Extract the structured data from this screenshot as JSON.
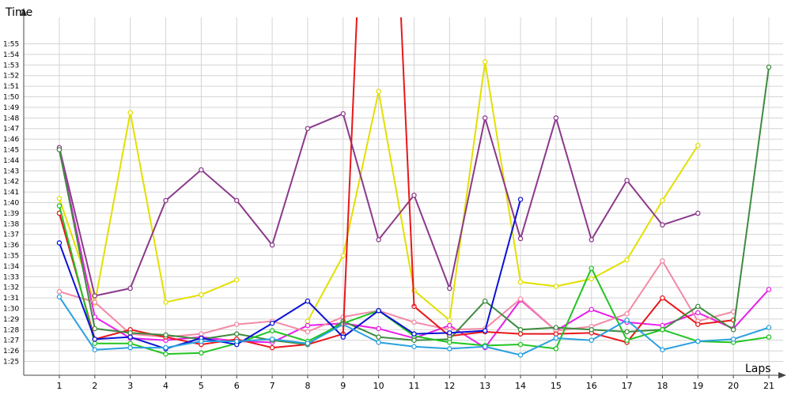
{
  "chart_data": {
    "type": "line",
    "xlabel": "Laps",
    "ylabel": "Time",
    "x": [
      1,
      2,
      3,
      4,
      5,
      6,
      7,
      8,
      9,
      10,
      11,
      12,
      13,
      14,
      15,
      16,
      17,
      18,
      19,
      20,
      21
    ],
    "x_ticks": [
      "1",
      "2",
      "3",
      "4",
      "5",
      "6",
      "7",
      "8",
      "9",
      "10",
      "11",
      "12",
      "13",
      "14",
      "15",
      "16",
      "17",
      "18",
      "19",
      "20",
      "21"
    ],
    "y_ticks_seconds": [
      85,
      86,
      87,
      88,
      89,
      90,
      91,
      92,
      93,
      94,
      95,
      96,
      97,
      98,
      99,
      100,
      101,
      102,
      103,
      104,
      105,
      106,
      107,
      108,
      109,
      110,
      111,
      112,
      113,
      114,
      115
    ],
    "y_tick_labels": [
      "1:25",
      "1:26",
      "1:27",
      "1:28",
      "1:29",
      "1:30",
      "1:31",
      "1:32",
      "1:33",
      "1:34",
      "1:35",
      "1:36",
      "1:37",
      "1:38",
      "1:39",
      "1:40",
      "1:41",
      "1:42",
      "1:43",
      "1:44",
      "1:45",
      "1:46",
      "1:47",
      "1:48",
      "1:49",
      "1:50",
      "1:51",
      "1:52",
      "1:53",
      "1:54",
      "1:55"
    ],
    "ylim_seconds": [
      83.8,
      117.6
    ],
    "grid": true,
    "legend": "none",
    "series": [
      {
        "color": "#e3df00",
        "values": [
          100.4,
          90.5,
          108.5,
          90.6,
          91.3,
          92.7,
          null,
          88.8,
          95.0,
          110.5,
          91.7,
          88.9,
          113.3,
          92.5,
          92.1,
          92.8,
          94.6,
          100.2,
          105.4,
          null,
          null
        ]
      },
      {
        "color": "#8b3a8b",
        "values": [
          105.2,
          91.2,
          91.9,
          100.2,
          103.1,
          100.2,
          96.0,
          107.0,
          108.4,
          96.5,
          100.7,
          91.9,
          108.0,
          96.6,
          108.0,
          96.5,
          102.1,
          97.9,
          99.0,
          null,
          null
        ]
      },
      {
        "color": "#e91fe9",
        "values": [
          105.0,
          89.2,
          87.2,
          87.0,
          87.3,
          86.9,
          86.8,
          88.4,
          88.6,
          88.1,
          87.2,
          88.4,
          86.3,
          90.8,
          87.9,
          89.9,
          88.7,
          88.4,
          89.6,
          88.1,
          91.8
        ]
      },
      {
        "color": "#f28aa5",
        "values": [
          91.6,
          90.6,
          87.6,
          87.3,
          87.6,
          88.5,
          88.8,
          87.8,
          89.2,
          89.8,
          88.7,
          88.0,
          88.1,
          90.9,
          87.9,
          88.3,
          89.5,
          94.5,
          88.8,
          89.7,
          null
        ]
      },
      {
        "color": "#e8171b",
        "values": [
          99.0,
          87.1,
          88.0,
          87.3,
          86.6,
          87.1,
          86.3,
          86.6,
          87.6,
          null,
          90.2,
          87.4,
          87.8,
          87.6,
          87.6,
          87.7,
          86.8,
          91.0,
          88.5,
          88.9,
          null
        ]
      },
      {
        "color": "#3e8b3f",
        "values": [
          105.0,
          88.1,
          87.7,
          87.5,
          87.1,
          87.6,
          87.0,
          86.6,
          88.8,
          87.3,
          87.0,
          87.1,
          90.7,
          88.0,
          88.2,
          88.0,
          87.8,
          88.0,
          90.2,
          88.0,
          112.8
        ]
      },
      {
        "color": "#22c422",
        "values": [
          99.7,
          86.7,
          86.7,
          85.7,
          85.8,
          86.7,
          87.9,
          86.9,
          88.6,
          89.8,
          87.4,
          86.8,
          86.5,
          86.6,
          86.2,
          93.8,
          87.0,
          88.0,
          86.9,
          86.8,
          87.3
        ]
      },
      {
        "color": "#0a12d6",
        "values": [
          96.2,
          87.1,
          87.3,
          86.2,
          87.2,
          86.6,
          88.6,
          90.7,
          87.3,
          89.8,
          87.6,
          87.7,
          87.9,
          100.3,
          null,
          null,
          null,
          null,
          null,
          null,
          null
        ]
      },
      {
        "color": "#2aa0e0",
        "values": [
          91.1,
          86.1,
          86.3,
          86.3,
          86.9,
          86.9,
          87.1,
          86.7,
          88.5,
          86.8,
          86.4,
          86.2,
          86.4,
          85.6,
          87.2,
          87.0,
          88.9,
          86.1,
          86.9,
          87.1,
          88.2
        ]
      }
    ],
    "red_spike": {
      "color": "#e8171b",
      "lap_from": 9,
      "lap_to": 11,
      "note": "off-scale values between laps 9 and 11"
    }
  }
}
